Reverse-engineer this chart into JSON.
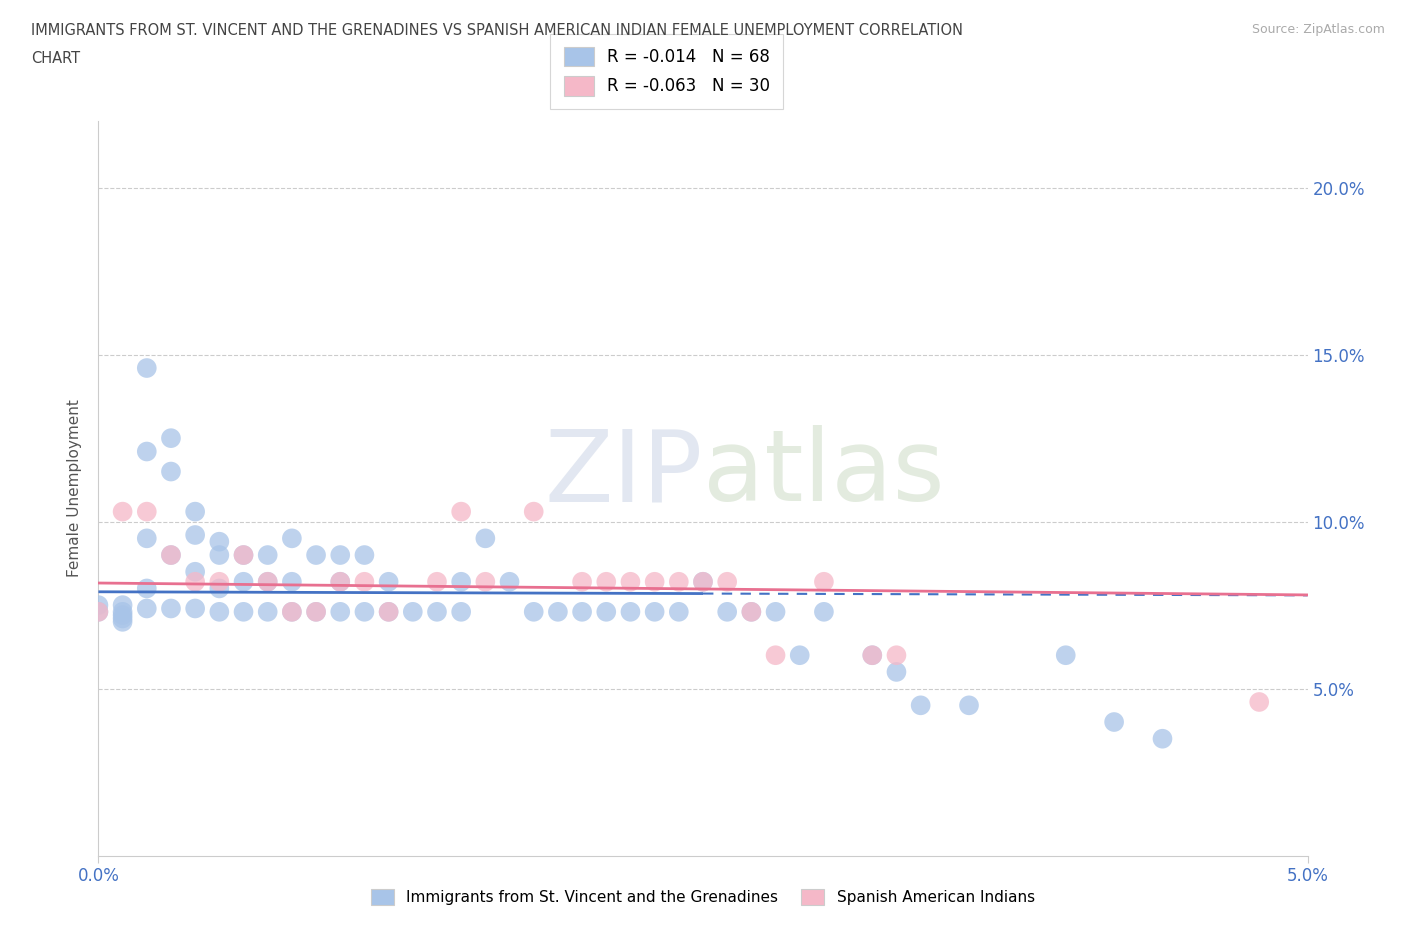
{
  "title_line1": "IMMIGRANTS FROM ST. VINCENT AND THE GRENADINES VS SPANISH AMERICAN INDIAN FEMALE UNEMPLOYMENT CORRELATION",
  "title_line2": "CHART",
  "source": "Source: ZipAtlas.com",
  "ylabel": "Female Unemployment",
  "xlim": [
    0.0,
    0.05
  ],
  "ylim": [
    0.0,
    0.22
  ],
  "blue_label": "Immigrants from St. Vincent and the Grenadines",
  "pink_label": "Spanish American Indians",
  "blue_R": "R = -0.014",
  "blue_N": "N = 68",
  "pink_R": "R = -0.063",
  "pink_N": "N = 30",
  "blue_color": "#a8c4e8",
  "pink_color": "#f5b8c8",
  "blue_line_color": "#4472c4",
  "pink_line_color": "#e87090",
  "blue_scatter_x": [
    0.0,
    0.0,
    0.001,
    0.001,
    0.001,
    0.001,
    0.001,
    0.002,
    0.002,
    0.002,
    0.002,
    0.002,
    0.003,
    0.003,
    0.003,
    0.003,
    0.004,
    0.004,
    0.004,
    0.004,
    0.005,
    0.005,
    0.005,
    0.005,
    0.006,
    0.006,
    0.006,
    0.007,
    0.007,
    0.007,
    0.008,
    0.008,
    0.008,
    0.009,
    0.009,
    0.01,
    0.01,
    0.01,
    0.011,
    0.011,
    0.012,
    0.012,
    0.013,
    0.014,
    0.015,
    0.015,
    0.016,
    0.017,
    0.018,
    0.019,
    0.02,
    0.021,
    0.022,
    0.023,
    0.024,
    0.025,
    0.026,
    0.027,
    0.028,
    0.029,
    0.03,
    0.032,
    0.033,
    0.034,
    0.036,
    0.04,
    0.042,
    0.044
  ],
  "blue_scatter_y": [
    0.075,
    0.073,
    0.075,
    0.073,
    0.072,
    0.071,
    0.07,
    0.146,
    0.121,
    0.095,
    0.08,
    0.074,
    0.125,
    0.115,
    0.09,
    0.074,
    0.103,
    0.096,
    0.085,
    0.074,
    0.094,
    0.09,
    0.08,
    0.073,
    0.09,
    0.082,
    0.073,
    0.09,
    0.082,
    0.073,
    0.095,
    0.082,
    0.073,
    0.09,
    0.073,
    0.09,
    0.082,
    0.073,
    0.09,
    0.073,
    0.082,
    0.073,
    0.073,
    0.073,
    0.082,
    0.073,
    0.095,
    0.082,
    0.073,
    0.073,
    0.073,
    0.073,
    0.073,
    0.073,
    0.073,
    0.082,
    0.073,
    0.073,
    0.073,
    0.06,
    0.073,
    0.06,
    0.055,
    0.045,
    0.045,
    0.06,
    0.04,
    0.035
  ],
  "pink_scatter_x": [
    0.0,
    0.001,
    0.002,
    0.003,
    0.004,
    0.005,
    0.006,
    0.007,
    0.008,
    0.009,
    0.01,
    0.011,
    0.012,
    0.014,
    0.015,
    0.016,
    0.018,
    0.02,
    0.021,
    0.022,
    0.023,
    0.024,
    0.025,
    0.026,
    0.027,
    0.028,
    0.03,
    0.032,
    0.033,
    0.048
  ],
  "pink_scatter_y": [
    0.073,
    0.103,
    0.103,
    0.09,
    0.082,
    0.082,
    0.09,
    0.082,
    0.073,
    0.073,
    0.082,
    0.082,
    0.073,
    0.082,
    0.103,
    0.082,
    0.103,
    0.082,
    0.082,
    0.082,
    0.082,
    0.082,
    0.082,
    0.082,
    0.073,
    0.06,
    0.082,
    0.06,
    0.06,
    0.046
  ]
}
